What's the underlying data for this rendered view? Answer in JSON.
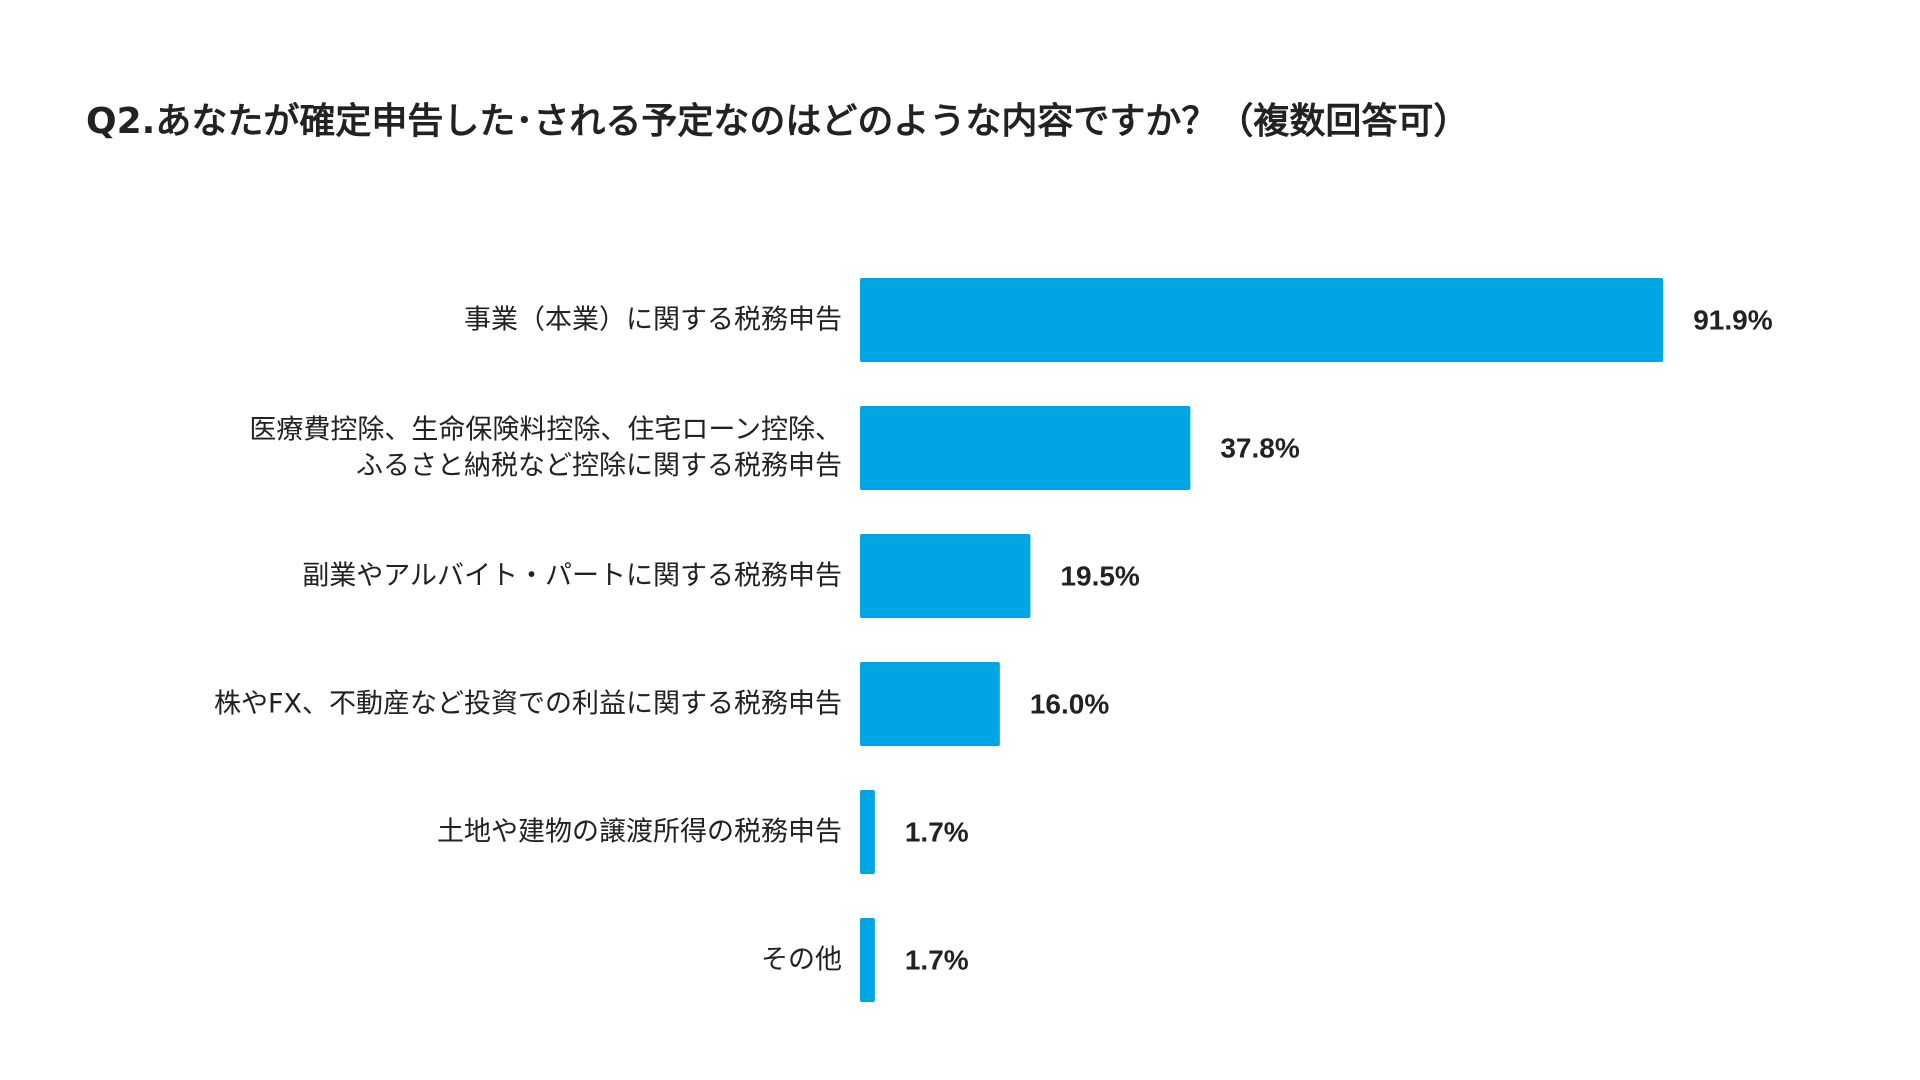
{
  "colors": {
    "bar": "#00a6e3",
    "text": "#222222",
    "background": "#ffffff"
  },
  "chart_data": {
    "type": "bar",
    "orientation": "horizontal",
    "title": "Q2.あなたが確定申告した･される予定なのはどのような内容ですか？（複数回答可）",
    "categories": [
      [
        "事業（本業）に関する税務申告"
      ],
      [
        "医療費控除、生命保険料控除、住宅ローン控除、",
        "ふるさと納税など控除に関する税務申告"
      ],
      [
        "副業やアルバイト・パートに関する税務申告"
      ],
      [
        "株やFX、不動産など投資での利益に関する税務申告"
      ],
      [
        "土地や建物の譲渡所得の税務申告"
      ],
      [
        "その他"
      ]
    ],
    "values": [
      91.9,
      37.8,
      19.5,
      16.0,
      1.7,
      1.7
    ],
    "value_labels": [
      "91.9%",
      "37.8%",
      "19.5%",
      "16.0%",
      "1.7%",
      "1.7%"
    ],
    "unit": "%",
    "xlim": [
      0,
      100
    ],
    "grid": false,
    "legend": "none"
  }
}
